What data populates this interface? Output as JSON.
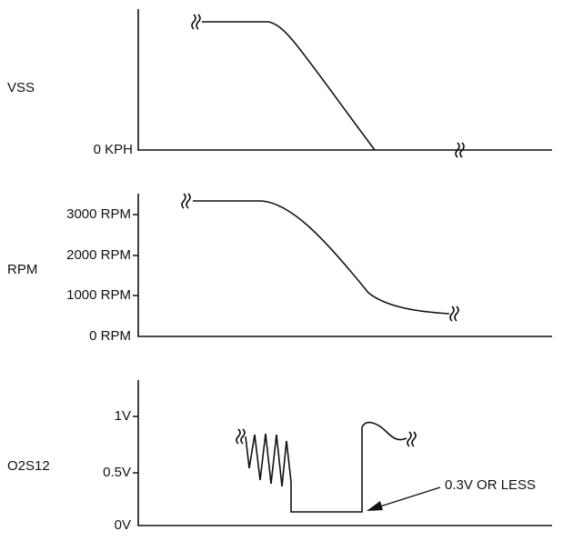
{
  "panels": [
    {
      "label": "VSS",
      "ticks": [
        "0 KPH"
      ]
    },
    {
      "label": "RPM",
      "ticks": [
        "3000 RPM",
        "2000 RPM",
        "1000 RPM",
        "0 RPM"
      ]
    },
    {
      "label": "O2S12",
      "ticks": [
        "1V",
        "0.5V",
        "0V"
      ],
      "annotation": "0.3V OR LESS"
    }
  ]
}
